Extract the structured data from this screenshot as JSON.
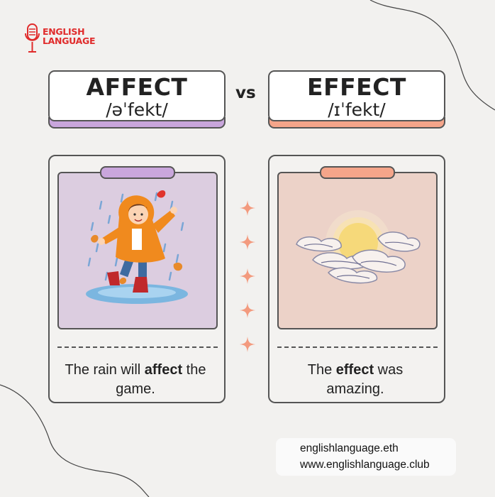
{
  "logo": {
    "line1": "ENGLISH",
    "line2": "LANGUAGE",
    "color": "#e02b2b"
  },
  "left_word": {
    "word": "AFFECT",
    "ipa": "/əˈfekt/",
    "accent": "#c9a6dc"
  },
  "right_word": {
    "word": "EFFECT",
    "ipa": "/ɪˈfekt/",
    "accent": "#f5a58a"
  },
  "vs_label": "vs",
  "left_example": {
    "before": "The rain will ",
    "bold": "affect",
    "after": " the game.",
    "image_bg": "#dccde0",
    "image_icon": "girl-in-rain-icon"
  },
  "right_example": {
    "before": "The ",
    "bold": "effect",
    "after": " was amazing.",
    "image_bg": "#ecd2c8",
    "image_icon": "sun-behind-clouds-icon"
  },
  "sparkle_icon": "sparkle-icon",
  "footer": {
    "line1": "englishlanguage.eth",
    "line2": "www.englishlanguage.club"
  }
}
